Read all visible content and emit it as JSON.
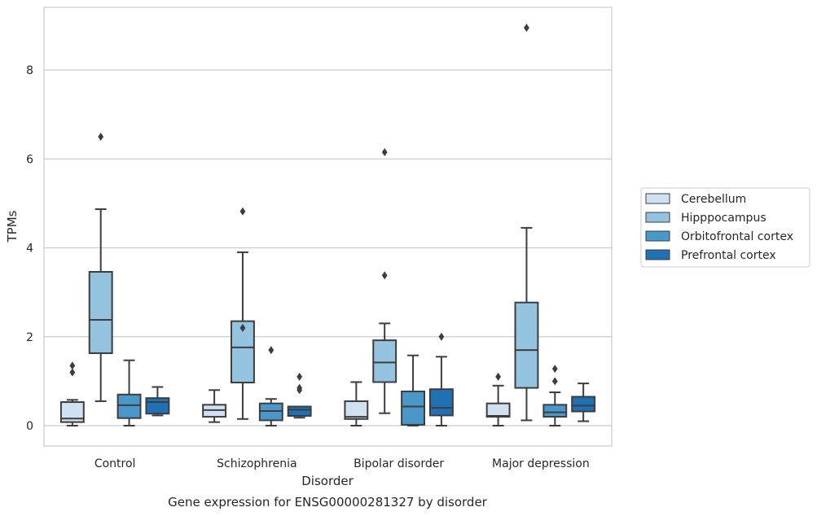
{
  "chart_data": {
    "type": "box",
    "caption": "Gene expression for ENSG00000281327 by disorder",
    "xlabel": "Disorder",
    "ylabel": "TPMs",
    "ylim": [
      -0.45,
      9.4
    ],
    "yticks": [
      0,
      2,
      4,
      6,
      8
    ],
    "grid": "horizontal",
    "legend_placement": "right",
    "categories": [
      "Control",
      "Schizophrenia",
      "Bipolar disorder",
      "Major depression"
    ],
    "series": [
      {
        "name": "Cerebellum",
        "color": "#d0e1f2",
        "boxes": [
          {
            "whisker_low": 0.0,
            "q1": 0.08,
            "median": 0.16,
            "q3": 0.53,
            "whisker_high": 0.58,
            "outliers": [
              1.2,
              1.35
            ]
          },
          {
            "whisker_low": 0.08,
            "q1": 0.2,
            "median": 0.35,
            "q3": 0.47,
            "whisker_high": 0.8,
            "outliers": []
          },
          {
            "whisker_low": 0.0,
            "q1": 0.15,
            "median": 0.2,
            "q3": 0.55,
            "whisker_high": 0.98,
            "outliers": []
          },
          {
            "whisker_low": 0.0,
            "q1": 0.2,
            "median": 0.22,
            "q3": 0.5,
            "whisker_high": 0.9,
            "outliers": [
              1.1
            ]
          }
        ]
      },
      {
        "name": "Hipppocampus",
        "color": "#94c4df",
        "boxes": [
          {
            "whisker_low": 0.55,
            "q1": 1.63,
            "median": 2.38,
            "q3": 3.46,
            "whisker_high": 4.87,
            "outliers": [
              6.5
            ]
          },
          {
            "whisker_low": 0.15,
            "q1": 0.97,
            "median": 1.76,
            "q3": 2.35,
            "whisker_high": 3.9,
            "outliers": [
              2.2,
              4.82
            ]
          },
          {
            "whisker_low": 0.28,
            "q1": 0.98,
            "median": 1.42,
            "q3": 1.92,
            "whisker_high": 2.3,
            "outliers": [
              3.38,
              6.15
            ]
          },
          {
            "whisker_low": 0.12,
            "q1": 0.85,
            "median": 1.7,
            "q3": 2.77,
            "whisker_high": 4.45,
            "outliers": [
              8.95
            ]
          }
        ]
      },
      {
        "name": "Orbitofrontal cortex",
        "color": "#4a98c9",
        "boxes": [
          {
            "whisker_low": 0.0,
            "q1": 0.17,
            "median": 0.46,
            "q3": 0.7,
            "whisker_high": 1.47,
            "outliers": []
          },
          {
            "whisker_low": 0.0,
            "q1": 0.12,
            "median": 0.33,
            "q3": 0.5,
            "whisker_high": 0.6,
            "outliers": [
              1.7
            ]
          },
          {
            "whisker_low": 0.0,
            "q1": 0.02,
            "median": 0.43,
            "q3": 0.77,
            "whisker_high": 1.58,
            "outliers": []
          },
          {
            "whisker_low": 0.0,
            "q1": 0.2,
            "median": 0.3,
            "q3": 0.47,
            "whisker_high": 0.75,
            "outliers": [
              1.0,
              1.28
            ]
          }
        ]
      },
      {
        "name": "Prefrontal cortex",
        "color": "#2070b4",
        "boxes": [
          {
            "whisker_low": 0.23,
            "q1": 0.27,
            "median": 0.53,
            "q3": 0.62,
            "whisker_high": 0.87,
            "outliers": []
          },
          {
            "whisker_low": 0.18,
            "q1": 0.22,
            "median": 0.36,
            "q3": 0.43,
            "whisker_high": 0.43,
            "outliers": [
              0.8,
              0.85,
              1.1
            ]
          },
          {
            "whisker_low": 0.0,
            "q1": 0.23,
            "median": 0.4,
            "q3": 0.82,
            "whisker_high": 1.55,
            "outliers": [
              2.0
            ]
          },
          {
            "whisker_low": 0.1,
            "q1": 0.32,
            "median": 0.45,
            "q3": 0.65,
            "whisker_high": 0.95,
            "outliers": []
          }
        ]
      }
    ]
  }
}
